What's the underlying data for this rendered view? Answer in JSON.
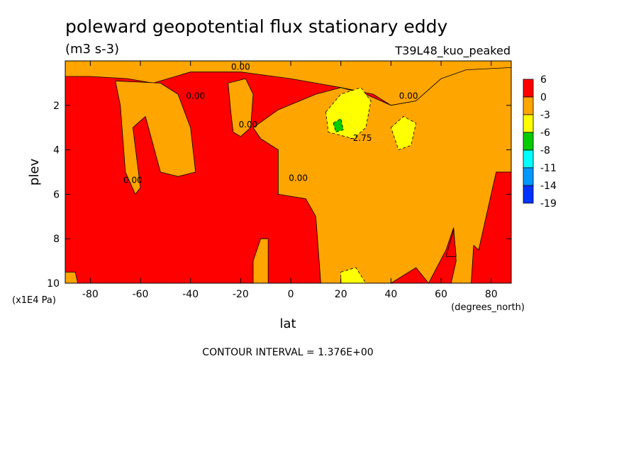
{
  "chart_data": {
    "type": "heatmap",
    "title": "poleward geopotential flux stationary eddy",
    "units": "(m3 s-3)",
    "run_label": "T39L48_kuo_peaked",
    "xlabel": "lat",
    "xunits": "(degrees_north)",
    "ylabel": "plev",
    "yunits": "(x1E4 Pa)",
    "xlim": [
      -90,
      88
    ],
    "ylim": [
      10,
      0
    ],
    "x_ticks": [
      -80,
      -60,
      -40,
      -20,
      0,
      20,
      40,
      60,
      80
    ],
    "y_ticks": [
      2,
      4,
      6,
      8,
      10
    ],
    "contour_interval_text": "CONTOUR INTERVAL = 1.376E+00",
    "contour_labels": [
      "0.00",
      "0.00",
      "0.00",
      "0.00",
      "0.00",
      "0.00",
      "-2.75"
    ],
    "colorbar": {
      "levels": [
        "6",
        "0",
        "-3",
        "-6",
        "-8",
        "-11",
        "-14",
        "-19"
      ],
      "colors": [
        "#ff0000",
        "#ffa500",
        "#ffff00",
        "#00cc00",
        "#00ffff",
        "#0099ff",
        "#0033ff"
      ]
    },
    "fields": {
      "background_color": "#ff0000",
      "positive_color": "#ff0000",
      "negative_color": "#ffa500",
      "moderate_negative_color": "#ffff00",
      "strong_negative_color": "#00cc00"
    },
    "regions": [
      {
        "name": "upper-negative-band",
        "level": "-3",
        "points": [
          [
            -90,
            0
          ],
          [
            88,
            0
          ],
          [
            88,
            0.5
          ],
          [
            60,
            0.8
          ],
          [
            50,
            1.8
          ],
          [
            40,
            2
          ],
          [
            33,
            1.5
          ],
          [
            20,
            1.2
          ],
          [
            10,
            1
          ],
          [
            0,
            0.8
          ],
          [
            -20,
            0.5
          ],
          [
            -40,
            0.5
          ],
          [
            -55,
            1
          ],
          [
            -65,
            0.8
          ],
          [
            -80,
            0.7
          ],
          [
            -90,
            0.7
          ]
        ]
      },
      {
        "name": "tropical-nh-negative",
        "level": "-3",
        "points": [
          [
            -5,
            2.2
          ],
          [
            10,
            1.5
          ],
          [
            20,
            1.2
          ],
          [
            30,
            1.5
          ],
          [
            40,
            2
          ],
          [
            50,
            1.8
          ],
          [
            60,
            0.8
          ],
          [
            70,
            0.4
          ],
          [
            88,
            0.3
          ],
          [
            88,
            5
          ],
          [
            82,
            5
          ],
          [
            80,
            6
          ],
          [
            75,
            8.5
          ],
          [
            73,
            8.3
          ],
          [
            72,
            10
          ],
          [
            55,
            10
          ],
          [
            50,
            9.3
          ],
          [
            40,
            10
          ],
          [
            12,
            10
          ],
          [
            10,
            7
          ],
          [
            6,
            6.2
          ],
          [
            -5,
            6
          ],
          [
            -5,
            4
          ],
          [
            -12,
            3.5
          ],
          [
            -15,
            3
          ]
        ]
      },
      {
        "name": "west-column",
        "level": "-3",
        "points": [
          [
            -70,
            0.9
          ],
          [
            -52,
            1
          ],
          [
            -45,
            1.5
          ],
          [
            -40,
            3
          ],
          [
            -38,
            5
          ],
          [
            -45,
            5.2
          ],
          [
            -52,
            5
          ],
          [
            -58,
            2.5
          ],
          [
            -63,
            3
          ],
          [
            -60,
            5.7
          ],
          [
            -62,
            6
          ],
          [
            -66,
            5
          ],
          [
            -68,
            2
          ]
        ]
      },
      {
        "name": "column-20s",
        "level": "-3",
        "points": [
          [
            -25,
            1
          ],
          [
            -18,
            0.8
          ],
          [
            -15,
            1.5
          ],
          [
            -16,
            3
          ],
          [
            -20,
            3.4
          ],
          [
            -23,
            3.2
          ],
          [
            -24,
            2.2
          ]
        ]
      },
      {
        "name": "yellow-tropical",
        "level": "-6",
        "points": [
          [
            14,
            2.3
          ],
          [
            20,
            1.5
          ],
          [
            28,
            1.2
          ],
          [
            32,
            1.8
          ],
          [
            30,
            3
          ],
          [
            25,
            3.5
          ],
          [
            15,
            3.2
          ]
        ]
      },
      {
        "name": "yellow-east",
        "level": "-6",
        "points": [
          [
            40,
            3
          ],
          [
            45,
            2.5
          ],
          [
            50,
            2.8
          ],
          [
            48,
            3.8
          ],
          [
            43,
            4
          ]
        ]
      },
      {
        "name": "yellow-surface",
        "level": "-6",
        "points": [
          [
            20,
            9.5
          ],
          [
            26,
            9.3
          ],
          [
            30,
            10
          ],
          [
            20,
            10
          ]
        ]
      },
      {
        "name": "green-core",
        "level": "-8",
        "points": [
          [
            17,
            2.8
          ],
          [
            20,
            2.6
          ],
          [
            21,
            3.1
          ],
          [
            18,
            3.2
          ]
        ]
      },
      {
        "name": "surface-red-east",
        "level": "0",
        "points": [
          [
            55,
            10
          ],
          [
            62,
            8.5
          ],
          [
            65,
            7.5
          ],
          [
            66,
            9
          ],
          [
            64,
            10
          ]
        ]
      },
      {
        "name": "surface-red-60",
        "level": "0",
        "points": [
          [
            62,
            8.8
          ],
          [
            65,
            7.6
          ],
          [
            66,
            8.8
          ]
        ]
      },
      {
        "name": "surface-orange-west",
        "level": "-3",
        "points": [
          [
            -90,
            9.5
          ],
          [
            -86,
            9.5
          ],
          [
            -85,
            10
          ],
          [
            -90,
            10
          ]
        ]
      },
      {
        "name": "surface-orange-mid",
        "level": "-3",
        "points": [
          [
            -15,
            9
          ],
          [
            -12,
            8
          ],
          [
            -9,
            8
          ],
          [
            -9,
            10
          ],
          [
            -15,
            10
          ]
        ]
      }
    ]
  }
}
